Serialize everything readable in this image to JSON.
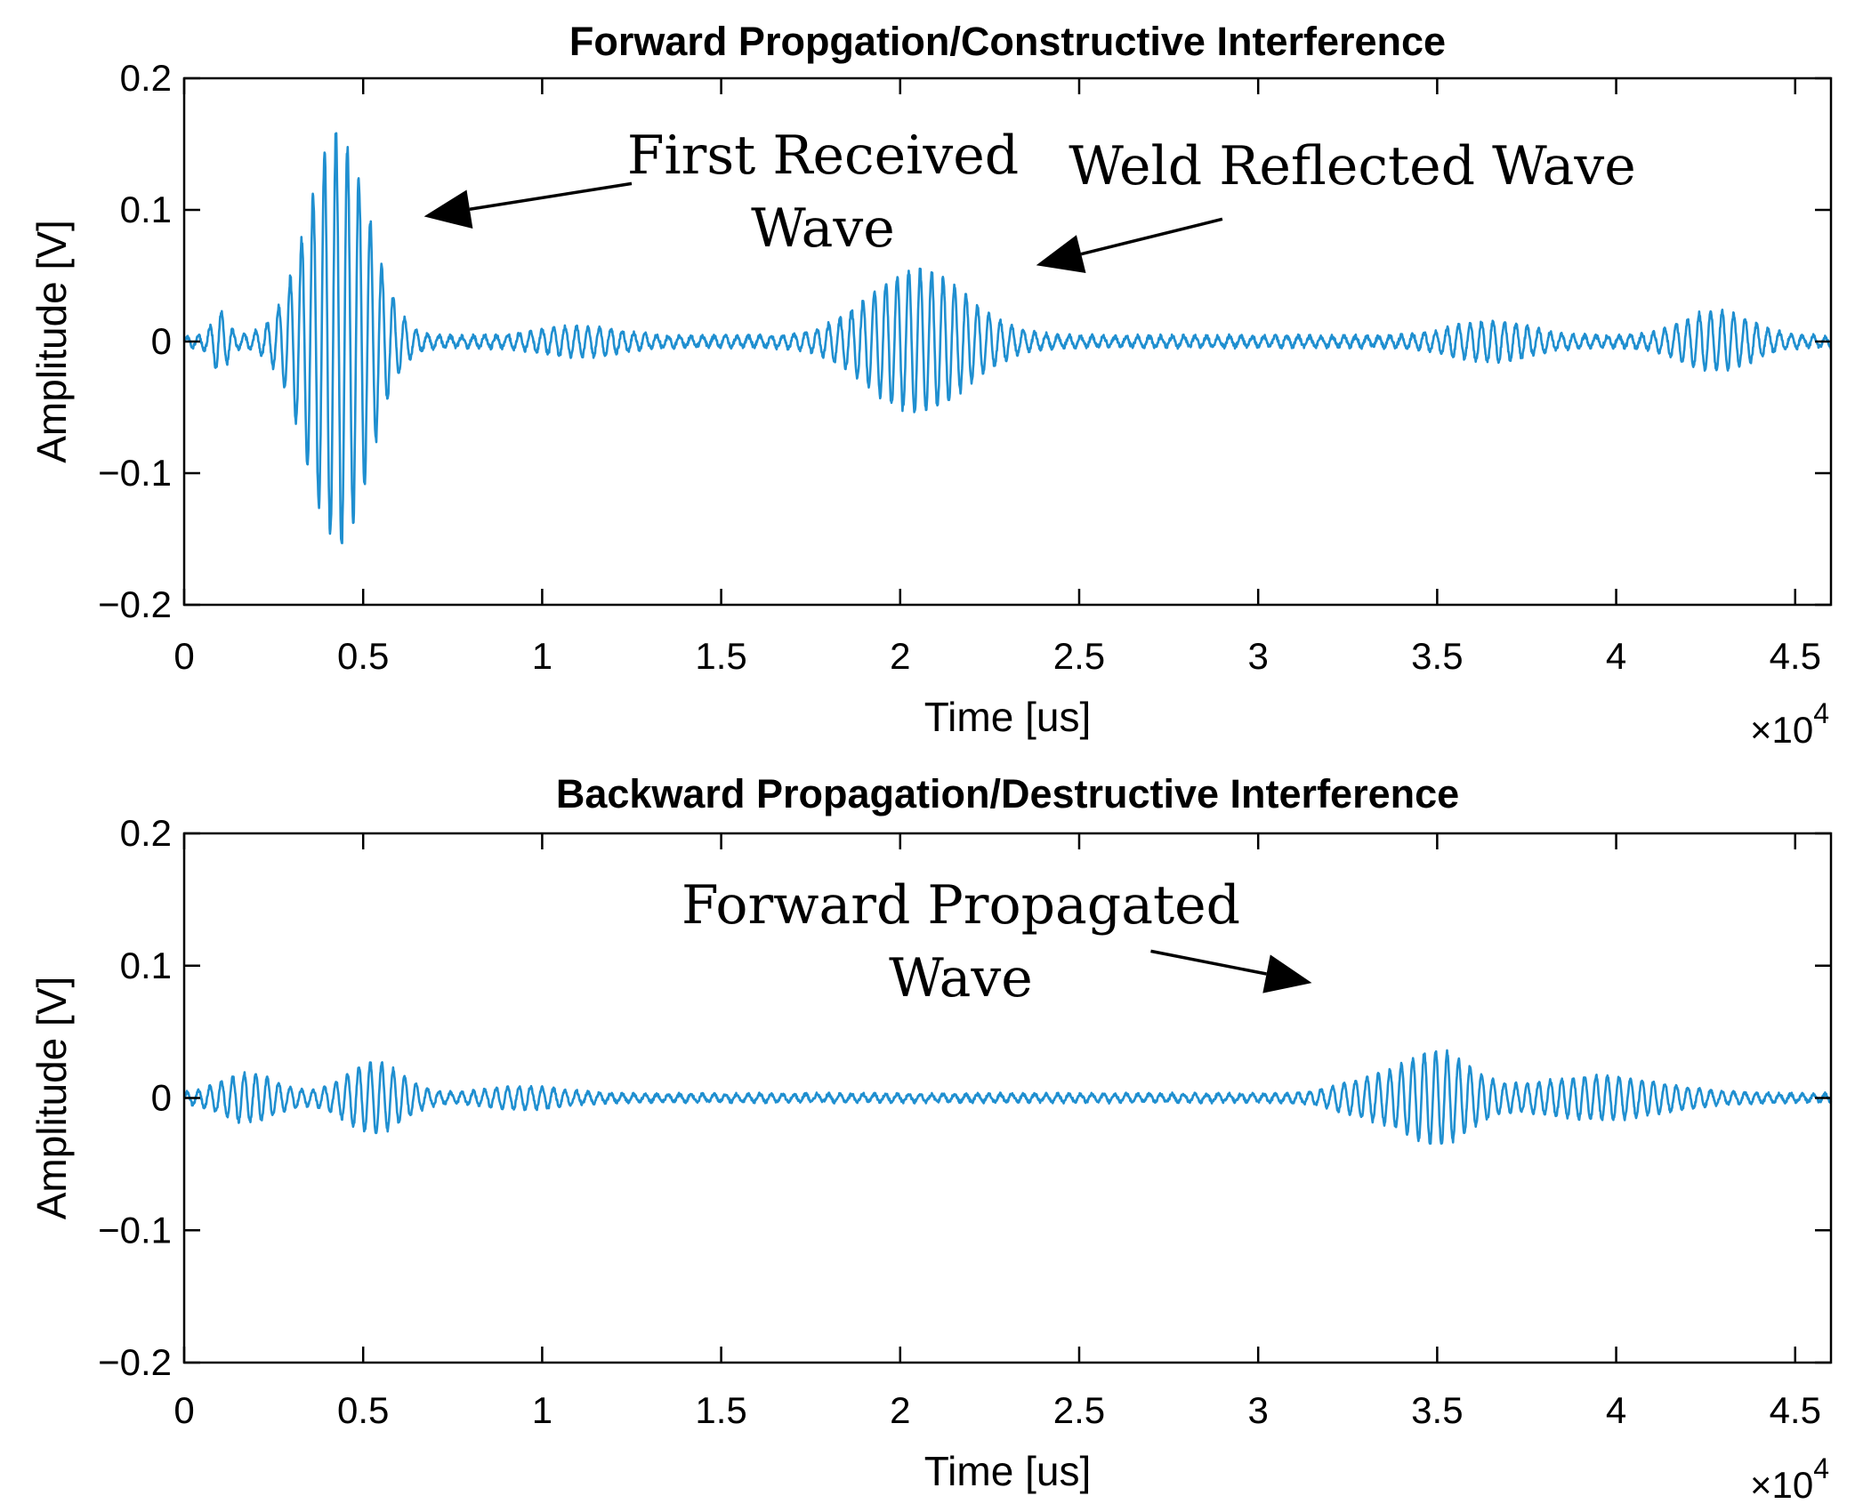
{
  "chart_data": [
    {
      "type": "line",
      "title": "Forward Propgation/Constructive Interference",
      "xlabel": "Time [us]",
      "ylabel": "Amplitude [V]",
      "x_multiplier": "×10",
      "x_multiplier_exp": "4",
      "xlim": [
        0,
        46000
      ],
      "ylim": [
        -0.2,
        0.2
      ],
      "xticks": [
        0,
        5000,
        10000,
        15000,
        20000,
        25000,
        30000,
        35000,
        40000,
        45000
      ],
      "xtick_labels": [
        "0",
        "0.5",
        "1",
        "1.5",
        "2",
        "2.5",
        "3",
        "3.5",
        "4",
        "4.5"
      ],
      "yticks": [
        0.2,
        0.1,
        0,
        -0.1,
        -0.2
      ],
      "ytick_labels": [
        "0.2",
        "0.1",
        "0",
        "−0.1",
        "−0.2"
      ],
      "grid": false,
      "color": "#1f8fd0",
      "series": [
        {
          "name": "signal",
          "kind": "envelope",
          "period_x": 320,
          "baseline_noise": 0.004,
          "packets": [
            {
              "center": 4300,
              "width": 1200,
              "amplitude": 0.16
            },
            {
              "center": 1000,
              "width": 300,
              "amplitude": 0.02
            },
            {
              "center": 11000,
              "width": 1500,
              "amplitude": 0.008
            },
            {
              "center": 20500,
              "width": 1900,
              "amplitude": 0.053
            },
            {
              "center": 36500,
              "width": 1500,
              "amplitude": 0.012
            },
            {
              "center": 42800,
              "width": 1300,
              "amplitude": 0.02
            }
          ]
        }
      ],
      "annotations": [
        {
          "lines": [
            "First Received",
            "Wave"
          ],
          "arrow_from": [
            12500,
            0.12
          ],
          "arrow_to": [
            6700,
            0.095
          ]
        },
        {
          "lines": [
            "Weld Reflected Wave"
          ],
          "arrow_from": [
            29000,
            0.093
          ],
          "arrow_to": [
            23800,
            0.058
          ]
        }
      ]
    },
    {
      "type": "line",
      "title": "Backward Propagation/Destructive Interference",
      "xlabel": "Time [us]",
      "ylabel": "Amplitude [V]",
      "x_multiplier": "×10",
      "x_multiplier_exp": "4",
      "xlim": [
        0,
        46000
      ],
      "ylim": [
        -0.2,
        0.2
      ],
      "xticks": [
        0,
        5000,
        10000,
        15000,
        20000,
        25000,
        30000,
        35000,
        40000,
        45000
      ],
      "xtick_labels": [
        "0",
        "0.5",
        "1",
        "1.5",
        "2",
        "2.5",
        "3",
        "3.5",
        "4",
        "4.5"
      ],
      "yticks": [
        0.2,
        0.1,
        0,
        -0.1,
        -0.2
      ],
      "ytick_labels": [
        "0.2",
        "0.1",
        "0",
        "−0.1",
        "−0.2"
      ],
      "grid": false,
      "color": "#1f8fd0",
      "series": [
        {
          "name": "signal",
          "kind": "envelope",
          "period_x": 320,
          "baseline_noise": 0.003,
          "packets": [
            {
              "center": 1800,
              "width": 1100,
              "amplitude": 0.016
            },
            {
              "center": 5300,
              "width": 1100,
              "amplitude": 0.025
            },
            {
              "center": 9500,
              "width": 1500,
              "amplitude": 0.006
            },
            {
              "center": 33000,
              "width": 1200,
              "amplitude": 0.01
            },
            {
              "center": 35000,
              "width": 1300,
              "amplitude": 0.033
            },
            {
              "center": 39500,
              "width": 2500,
              "amplitude": 0.014
            }
          ]
        }
      ],
      "annotations": [
        {
          "lines": [
            "Forward Propagated",
            "Wave"
          ],
          "arrow_from": [
            27000,
            0.111
          ],
          "arrow_to": [
            31500,
            0.087
          ]
        }
      ]
    }
  ]
}
